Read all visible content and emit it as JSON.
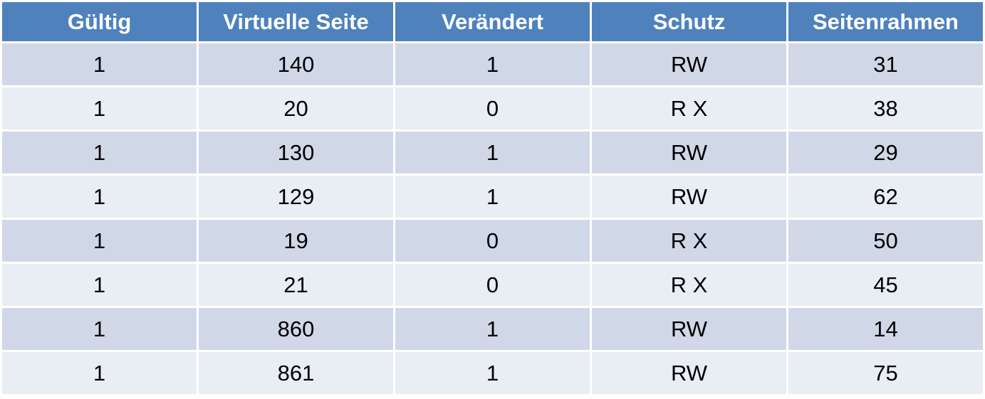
{
  "table": {
    "headers": [
      "Gültig",
      "Virtuelle Seite",
      "Verändert",
      "Schutz",
      "Seitenrahmen"
    ],
    "rows": [
      [
        "1",
        "140",
        "1",
        "RW",
        "31"
      ],
      [
        "1",
        "20",
        "0",
        "R X",
        "38"
      ],
      [
        "1",
        "130",
        "1",
        "RW",
        "29"
      ],
      [
        "1",
        "129",
        "1",
        "RW",
        "62"
      ],
      [
        "1",
        "19",
        "0",
        "R X",
        "50"
      ],
      [
        "1",
        "21",
        "0",
        "R X",
        "45"
      ],
      [
        "1",
        "860",
        "1",
        "RW",
        "14"
      ],
      [
        "1",
        "861",
        "1",
        "RW",
        "75"
      ]
    ]
  },
  "colors": {
    "header_bg": "#4f81bd",
    "row_odd_bg": "#d0d8e8",
    "row_even_bg": "#e9edf4",
    "header_text": "#ffffff",
    "body_text": "#000000"
  }
}
